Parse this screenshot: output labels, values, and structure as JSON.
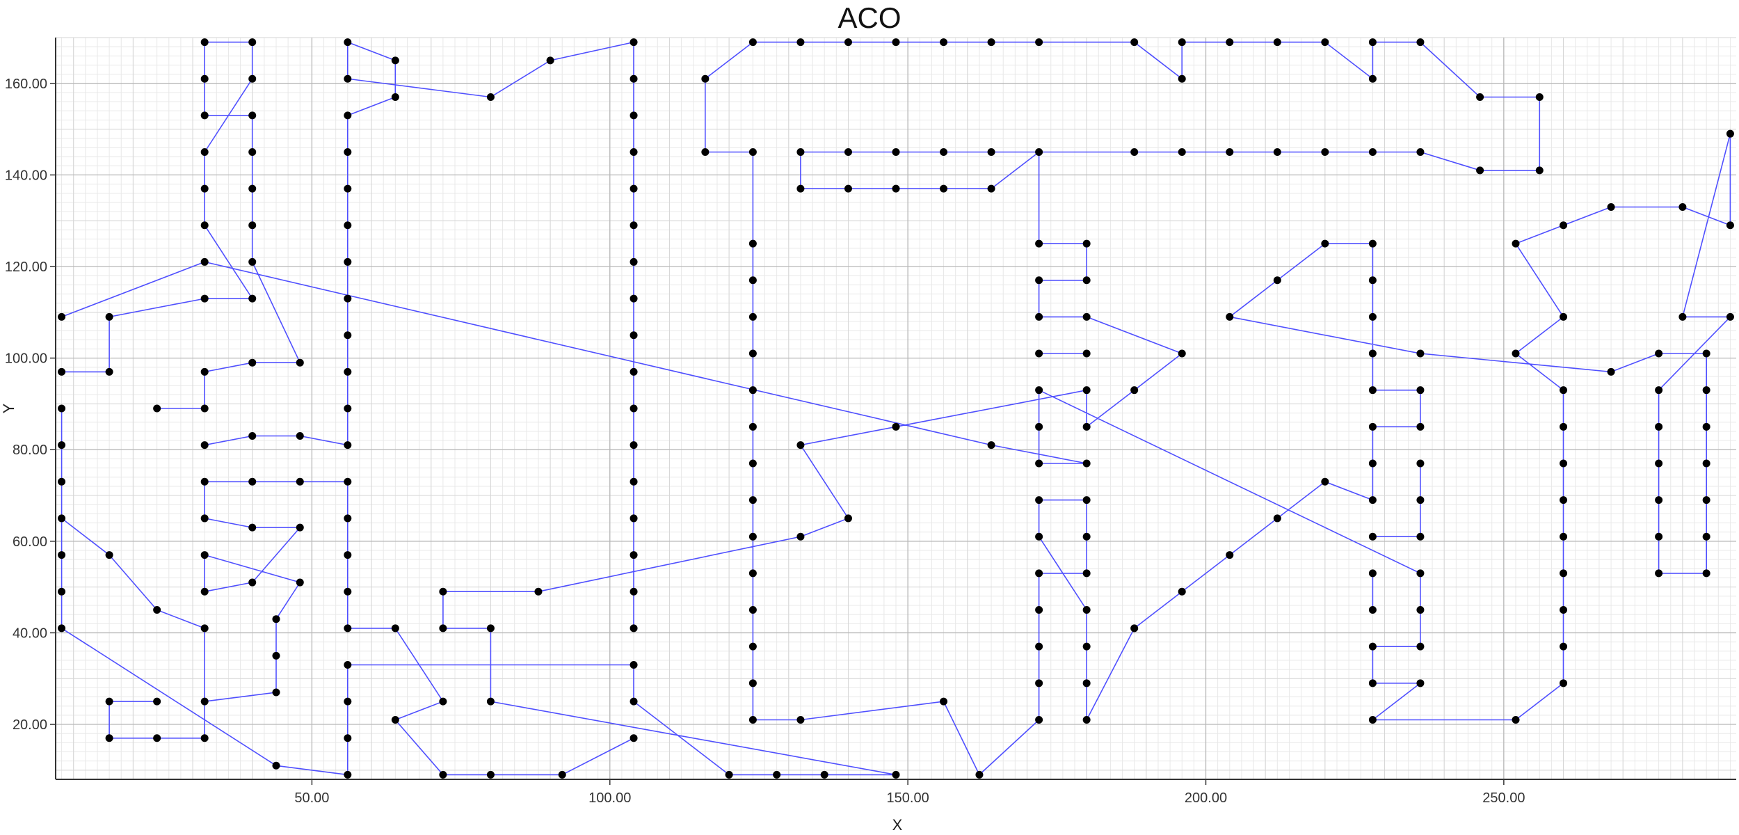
{
  "chart_data": {
    "type": "line",
    "title": "ACO",
    "xlabel": "X",
    "ylabel": "Y",
    "xlim": [
      7,
      289
    ],
    "ylim": [
      8,
      170
    ],
    "xticks": [
      50,
      100,
      150,
      200,
      250
    ],
    "xtick_labels": [
      "50.00",
      "100.00",
      "150.00",
      "200.00",
      "250.00"
    ],
    "yticks": [
      20,
      40,
      60,
      80,
      100,
      120,
      140,
      160
    ],
    "ytick_labels": [
      "20.00",
      "40.00",
      "60.00",
      "80.00",
      "100.00",
      "120.00",
      "140.00",
      "160.00"
    ],
    "grid": true,
    "colors": {
      "route": "#5050ff",
      "node": "#000000",
      "grid_major": "#b8b8b8",
      "grid_minor": "#e8e8e8"
    },
    "series": [
      {
        "values": [
          [
            8,
            97
          ],
          [
            16,
            97
          ],
          [
            16,
            109
          ],
          [
            32,
            113
          ],
          [
            40,
            113
          ],
          [
            32,
            129
          ],
          [
            32,
            137
          ],
          [
            32,
            145
          ],
          [
            40,
            161
          ],
          [
            40,
            169
          ],
          [
            32,
            169
          ],
          [
            32,
            161
          ],
          [
            32,
            153
          ],
          [
            40,
            153
          ],
          [
            40,
            145
          ],
          [
            40,
            137
          ],
          [
            40,
            129
          ],
          [
            40,
            121
          ],
          [
            48,
            99
          ],
          [
            40,
            99
          ],
          [
            32,
            97
          ],
          [
            32,
            89
          ],
          [
            24,
            89
          ]
        ]
      },
      {
        "values": [
          [
            8,
            109
          ],
          [
            32,
            121
          ],
          [
            164,
            81
          ],
          [
            180,
            77
          ],
          [
            172,
            77
          ],
          [
            172,
            85
          ],
          [
            172,
            93
          ],
          [
            236,
            53
          ],
          [
            236,
            45
          ],
          [
            236,
            37
          ],
          [
            228,
            37
          ],
          [
            228,
            29
          ],
          [
            236,
            29
          ],
          [
            228,
            21
          ],
          [
            252,
            21
          ],
          [
            260,
            29
          ],
          [
            260,
            37
          ],
          [
            260,
            45
          ],
          [
            260,
            53
          ],
          [
            260,
            61
          ],
          [
            260,
            69
          ],
          [
            260,
            77
          ],
          [
            260,
            85
          ],
          [
            260,
            93
          ],
          [
            252,
            101
          ],
          [
            260,
            109
          ],
          [
            252,
            125
          ],
          [
            260,
            129
          ],
          [
            268,
            133
          ],
          [
            280,
            133
          ],
          [
            288,
            129
          ],
          [
            288,
            149
          ],
          [
            280,
            109
          ],
          [
            288,
            109
          ],
          [
            276,
            93
          ],
          [
            276,
            85
          ],
          [
            276,
            77
          ],
          [
            276,
            69
          ],
          [
            276,
            61
          ],
          [
            276,
            53
          ],
          [
            284,
            53
          ],
          [
            284,
            61
          ],
          [
            284,
            69
          ],
          [
            284,
            77
          ],
          [
            284,
            85
          ],
          [
            284,
            93
          ],
          [
            284,
            101
          ],
          [
            276,
            101
          ],
          [
            268,
            97
          ],
          [
            236,
            101
          ],
          [
            204,
            109
          ],
          [
            212,
            117
          ],
          [
            220,
            125
          ],
          [
            228,
            125
          ],
          [
            228,
            117
          ],
          [
            228,
            109
          ],
          [
            228,
            101
          ],
          [
            228,
            93
          ],
          [
            236,
            93
          ],
          [
            236,
            85
          ],
          [
            228,
            85
          ],
          [
            228,
            77
          ],
          [
            228,
            69
          ],
          [
            220,
            73
          ],
          [
            212,
            65
          ],
          [
            204,
            57
          ],
          [
            196,
            49
          ],
          [
            188,
            41
          ],
          [
            180,
            21
          ],
          [
            180,
            29
          ],
          [
            180,
            37
          ],
          [
            180,
            45
          ],
          [
            172,
            61
          ],
          [
            172,
            69
          ],
          [
            180,
            69
          ],
          [
            180,
            61
          ],
          [
            180,
            53
          ],
          [
            172,
            53
          ],
          [
            172,
            45
          ],
          [
            172,
            37
          ],
          [
            172,
            29
          ],
          [
            172,
            21
          ],
          [
            162,
            9
          ],
          [
            156,
            25
          ],
          [
            132,
            21
          ],
          [
            124,
            21
          ],
          [
            124,
            29
          ],
          [
            124,
            37
          ],
          [
            124,
            45
          ],
          [
            124,
            53
          ],
          [
            124,
            61
          ],
          [
            124,
            69
          ],
          [
            124,
            77
          ],
          [
            124,
            85
          ],
          [
            124,
            93
          ],
          [
            124,
            101
          ],
          [
            124,
            109
          ],
          [
            124,
            117
          ],
          [
            124,
            125
          ],
          [
            124,
            145
          ],
          [
            116,
            145
          ],
          [
            116,
            161
          ],
          [
            124,
            169
          ],
          [
            132,
            169
          ],
          [
            140,
            169
          ],
          [
            148,
            169
          ],
          [
            156,
            169
          ],
          [
            164,
            169
          ],
          [
            172,
            169
          ],
          [
            188,
            169
          ],
          [
            196,
            161
          ],
          [
            196,
            169
          ],
          [
            204,
            169
          ],
          [
            212,
            169
          ],
          [
            220,
            169
          ],
          [
            228,
            161
          ],
          [
            228,
            169
          ],
          [
            236,
            169
          ],
          [
            246,
            157
          ],
          [
            256,
            157
          ],
          [
            256,
            141
          ],
          [
            246,
            141
          ],
          [
            236,
            145
          ],
          [
            228,
            145
          ],
          [
            220,
            145
          ],
          [
            212,
            145
          ],
          [
            204,
            145
          ],
          [
            196,
            145
          ],
          [
            188,
            145
          ],
          [
            172,
            145
          ],
          [
            164,
            145
          ],
          [
            156,
            145
          ],
          [
            148,
            145
          ],
          [
            140,
            145
          ],
          [
            132,
            145
          ],
          [
            132,
            137
          ],
          [
            140,
            137
          ],
          [
            148,
            137
          ],
          [
            156,
            137
          ],
          [
            164,
            137
          ],
          [
            172,
            145
          ],
          [
            172,
            125
          ],
          [
            180,
            125
          ],
          [
            180,
            117
          ],
          [
            172,
            117
          ],
          [
            172,
            109
          ],
          [
            180,
            109
          ],
          [
            196,
            101
          ],
          [
            188,
            93
          ],
          [
            180,
            85
          ],
          [
            180,
            93
          ],
          [
            148,
            85
          ],
          [
            132,
            81
          ],
          [
            140,
            65
          ],
          [
            132,
            61
          ],
          [
            88,
            49
          ],
          [
            72,
            49
          ],
          [
            72,
            41
          ],
          [
            80,
            41
          ],
          [
            80,
            25
          ],
          [
            148,
            9
          ],
          [
            136,
            9
          ],
          [
            128,
            9
          ],
          [
            120,
            9
          ],
          [
            104,
            25
          ],
          [
            104,
            33
          ],
          [
            56,
            33
          ],
          [
            56,
            25
          ],
          [
            56,
            17
          ],
          [
            56,
            9
          ],
          [
            44,
            11
          ],
          [
            8,
            41
          ],
          [
            8,
            49
          ],
          [
            8,
            57
          ],
          [
            8,
            65
          ],
          [
            16,
            57
          ],
          [
            24,
            45
          ],
          [
            32,
            41
          ],
          [
            32,
            25
          ],
          [
            44,
            27
          ],
          [
            44,
            35
          ],
          [
            44,
            43
          ],
          [
            48,
            51
          ],
          [
            32,
            57
          ],
          [
            32,
            49
          ],
          [
            40,
            51
          ],
          [
            48,
            63
          ],
          [
            40,
            63
          ],
          [
            32,
            65
          ],
          [
            32,
            73
          ],
          [
            40,
            73
          ],
          [
            48,
            73
          ],
          [
            56,
            73
          ],
          [
            56,
            65
          ],
          [
            56,
            57
          ],
          [
            56,
            49
          ],
          [
            56,
            41
          ],
          [
            64,
            41
          ],
          [
            72,
            25
          ],
          [
            64,
            21
          ],
          [
            72,
            9
          ],
          [
            80,
            9
          ],
          [
            92,
            9
          ],
          [
            104,
            17
          ]
        ]
      },
      {
        "values": [
          [
            24,
            25
          ],
          [
            16,
            25
          ],
          [
            16,
            17
          ],
          [
            24,
            17
          ],
          [
            32,
            17
          ],
          [
            32,
            25
          ]
        ]
      },
      {
        "values": [
          [
            8,
            65
          ],
          [
            8,
            73
          ],
          [
            8,
            81
          ],
          [
            8,
            89
          ]
        ]
      },
      {
        "values": [
          [
            32,
            81
          ],
          [
            40,
            83
          ],
          [
            48,
            83
          ],
          [
            56,
            81
          ],
          [
            56,
            89
          ],
          [
            56,
            97
          ],
          [
            56,
            105
          ],
          [
            56,
            113
          ],
          [
            56,
            121
          ],
          [
            56,
            129
          ],
          [
            56,
            137
          ],
          [
            56,
            145
          ],
          [
            56,
            153
          ],
          [
            64,
            157
          ],
          [
            64,
            165
          ],
          [
            56,
            169
          ],
          [
            56,
            161
          ],
          [
            80,
            157
          ],
          [
            90,
            165
          ],
          [
            104,
            169
          ],
          [
            104,
            161
          ],
          [
            104,
            153
          ],
          [
            104,
            145
          ],
          [
            104,
            137
          ],
          [
            104,
            129
          ],
          [
            104,
            121
          ],
          [
            104,
            113
          ],
          [
            104,
            105
          ],
          [
            104,
            97
          ],
          [
            104,
            89
          ],
          [
            104,
            81
          ],
          [
            104,
            73
          ],
          [
            104,
            65
          ],
          [
            104,
            57
          ],
          [
            104,
            49
          ],
          [
            104,
            41
          ]
        ]
      },
      {
        "values": [
          [
            172,
            101
          ],
          [
            180,
            101
          ]
        ]
      },
      {
        "values": [
          [
            228,
            61
          ],
          [
            236,
            61
          ],
          [
            236,
            69
          ],
          [
            236,
            77
          ]
        ]
      },
      {
        "values": [
          [
            228,
            53
          ],
          [
            228,
            45
          ]
        ]
      }
    ]
  }
}
